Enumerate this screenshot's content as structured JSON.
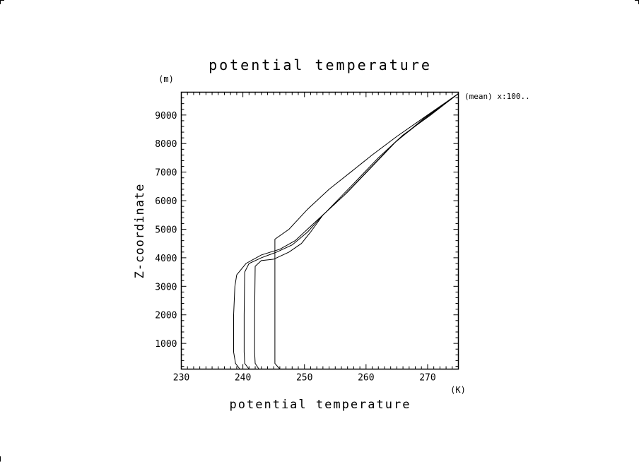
{
  "chart_data": {
    "type": "line",
    "title": "potential temperature",
    "xlabel": "potential temperature",
    "ylabel": "Z-coordinate",
    "x_unit": "(K)",
    "y_unit": "(m)",
    "xlim": [
      230,
      275
    ],
    "ylim": [
      100,
      9800
    ],
    "x_ticks": [
      230,
      240,
      250,
      260,
      270
    ],
    "y_ticks": [
      1000,
      2000,
      3000,
      4000,
      5000,
      6000,
      7000,
      8000,
      9000
    ],
    "annotation": "(mean) x:100..",
    "series": [
      {
        "points": [
          [
            239.5,
            100
          ],
          [
            238.8,
            300
          ],
          [
            238.5,
            700
          ],
          [
            238.5,
            2000
          ],
          [
            238.7,
            3000
          ],
          [
            239.0,
            3400
          ],
          [
            240.5,
            3800
          ],
          [
            243.0,
            4100
          ],
          [
            246.0,
            4300
          ],
          [
            248.5,
            4600
          ],
          [
            251.0,
            5100
          ],
          [
            253.5,
            5600
          ],
          [
            258.0,
            6600
          ],
          [
            262.0,
            7500
          ],
          [
            266.0,
            8300
          ],
          [
            270.5,
            9000
          ],
          [
            275.0,
            9750
          ]
        ]
      },
      {
        "points": [
          [
            241.0,
            100
          ],
          [
            240.3,
            300
          ],
          [
            240.2,
            700
          ],
          [
            240.2,
            2000
          ],
          [
            240.3,
            3500
          ],
          [
            241.0,
            3800
          ],
          [
            243.0,
            4000
          ],
          [
            245.5,
            4200
          ],
          [
            248.0,
            4450
          ],
          [
            250.5,
            4900
          ],
          [
            253.0,
            5500
          ],
          [
            257.0,
            6300
          ],
          [
            261.0,
            7200
          ],
          [
            265.0,
            8100
          ],
          [
            270.0,
            8950
          ],
          [
            275.0,
            9750
          ]
        ]
      },
      {
        "points": [
          [
            242.6,
            100
          ],
          [
            242.0,
            300
          ],
          [
            241.9,
            700
          ],
          [
            241.9,
            2000
          ],
          [
            242.0,
            3700
          ],
          [
            243.0,
            3900
          ],
          [
            245.0,
            3950
          ],
          [
            247.5,
            4200
          ],
          [
            249.5,
            4500
          ],
          [
            251.0,
            4900
          ],
          [
            253.0,
            5500
          ],
          [
            256.5,
            6200
          ],
          [
            260.5,
            7100
          ],
          [
            264.5,
            8000
          ],
          [
            269.5,
            8900
          ],
          [
            275.0,
            9750
          ]
        ]
      },
      {
        "points": [
          [
            246.0,
            100
          ],
          [
            245.2,
            300
          ],
          [
            245.2,
            2000
          ],
          [
            245.2,
            4200
          ],
          [
            245.2,
            4650
          ],
          [
            247.5,
            5000
          ],
          [
            250.5,
            5700
          ],
          [
            254.0,
            6400
          ],
          [
            257.5,
            7000
          ],
          [
            261.0,
            7600
          ],
          [
            265.0,
            8250
          ],
          [
            270.0,
            9000
          ],
          [
            275.0,
            9750
          ]
        ]
      }
    ]
  }
}
